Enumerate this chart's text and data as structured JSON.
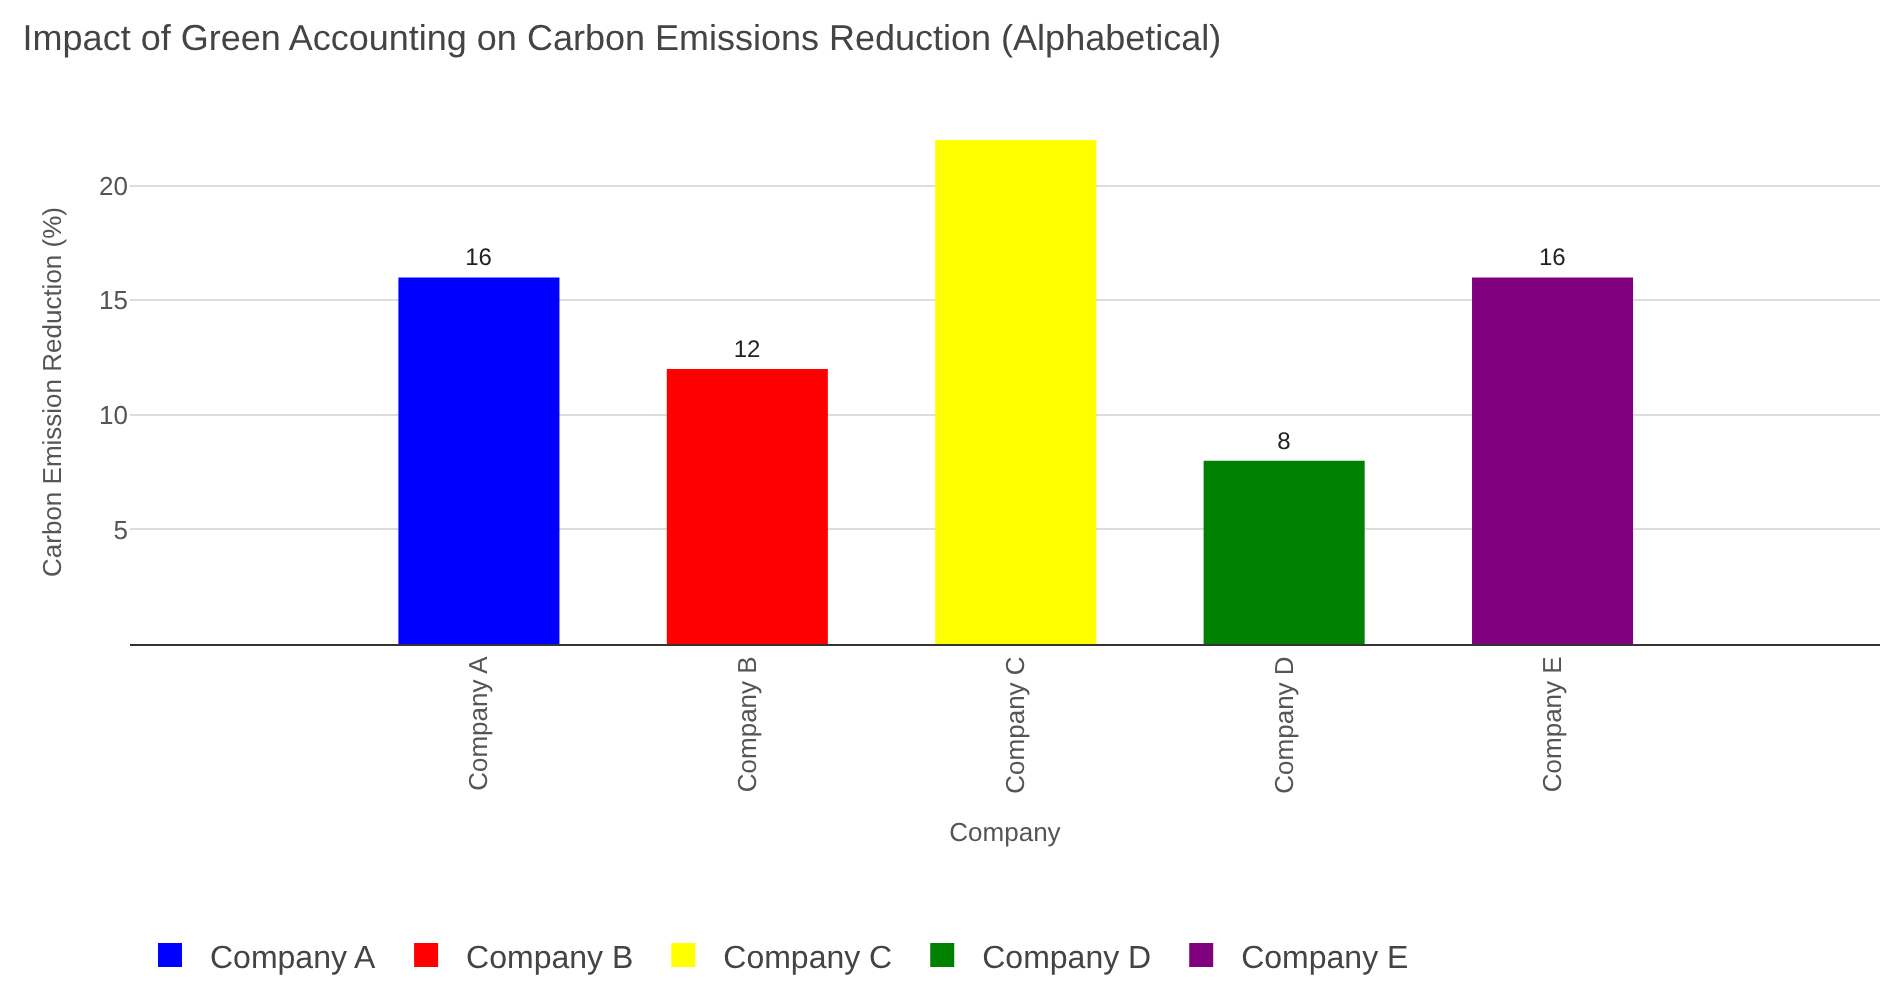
{
  "chart_data": {
    "type": "bar",
    "title": "Impact of Green Accounting on Carbon Emissions Reduction (Alphabetical)",
    "xlabel": "Company",
    "ylabel": "Carbon Emission Reduction (%)",
    "categories": [
      "Company A",
      "Company B",
      "Company C",
      "Company D",
      "Company E"
    ],
    "series": [
      {
        "name": "Company A",
        "color": "#0000ff",
        "values": [
          16,
          null,
          null,
          null,
          null
        ],
        "value_labels": [
          "16",
          null,
          null,
          null,
          null
        ]
      },
      {
        "name": "Company B",
        "color": "#ff0000",
        "values": [
          null,
          12,
          null,
          null,
          null
        ],
        "value_labels": [
          null,
          "12",
          null,
          null,
          null
        ]
      },
      {
        "name": "Company C",
        "color": "#ffff00",
        "values": [
          null,
          null,
          22,
          null,
          null
        ]
      },
      {
        "name": "Company D",
        "color": "#008000",
        "values": [
          null,
          null,
          null,
          8,
          null
        ],
        "value_labels": [
          null,
          null,
          null,
          "8",
          null
        ]
      },
      {
        "name": "Company E",
        "color": "#800080",
        "values": [
          null,
          null,
          null,
          null,
          16
        ],
        "value_labels": [
          null,
          null,
          null,
          null,
          "16"
        ]
      }
    ],
    "stacked": true,
    "ylim": [
      0,
      22
    ],
    "yticks": [
      5,
      10,
      15,
      20
    ],
    "grid": "y",
    "legend": "bottom"
  }
}
